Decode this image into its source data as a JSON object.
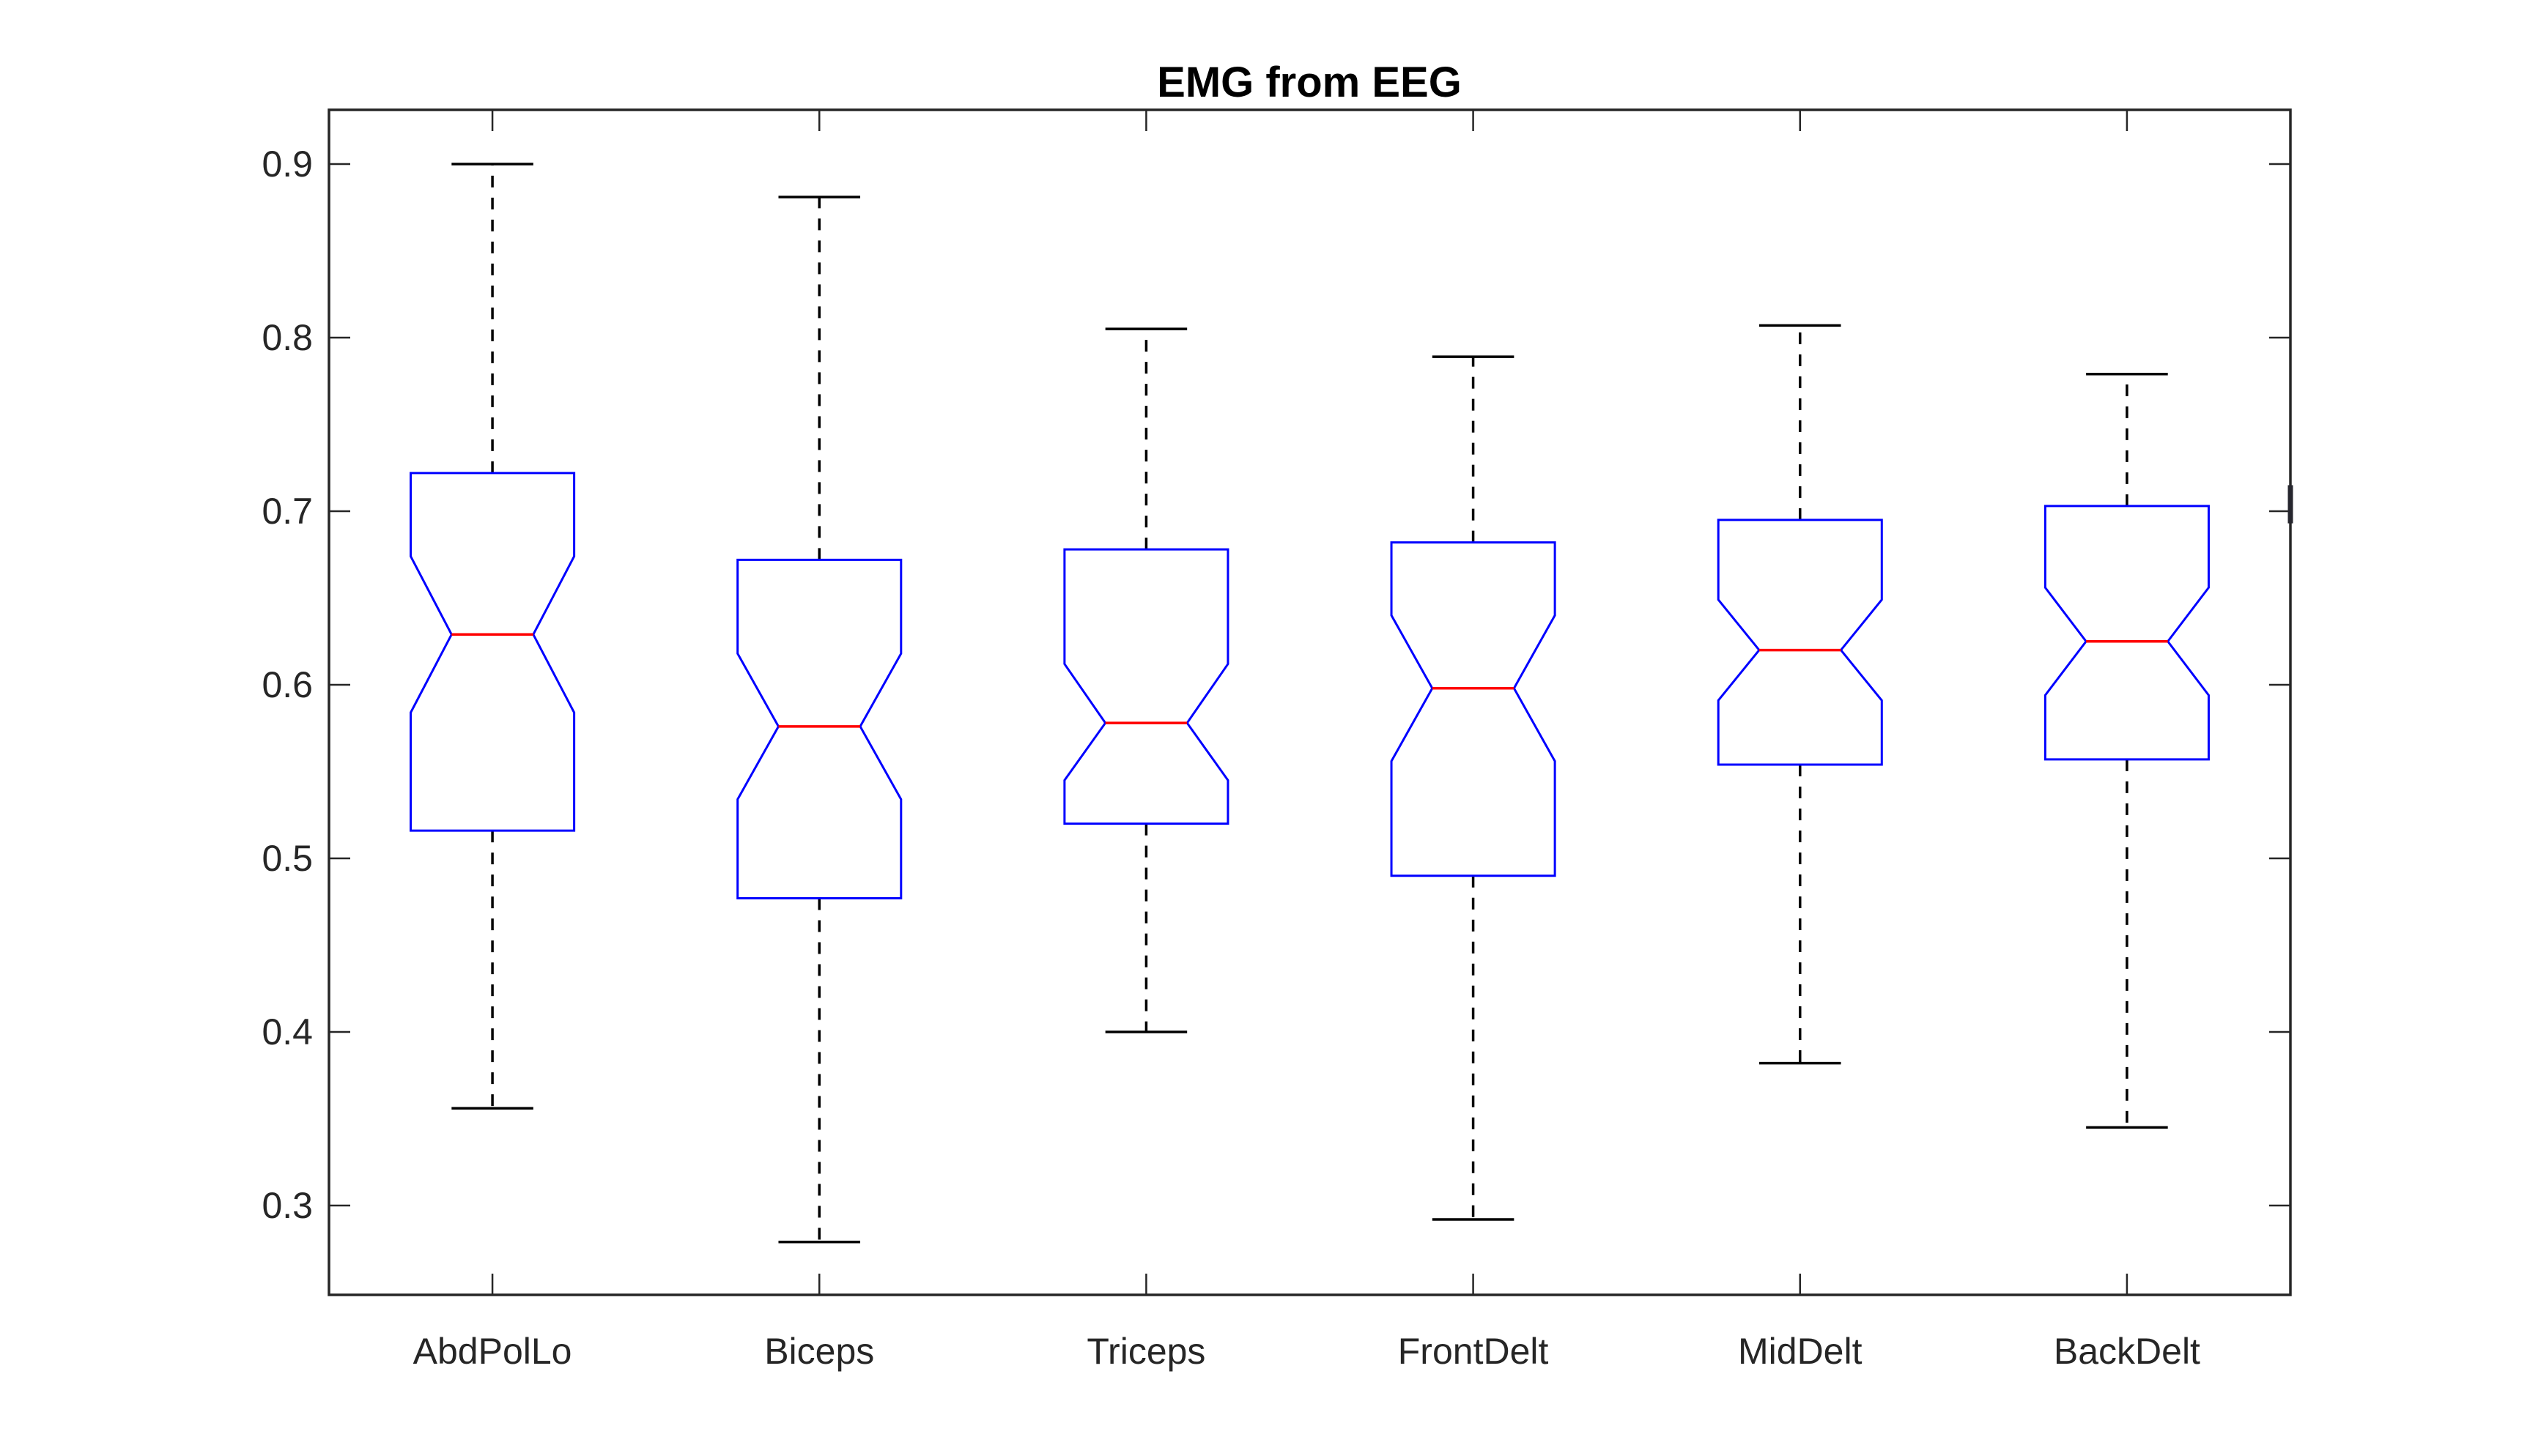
{
  "title": "EMG from EEG",
  "colors": {
    "box": "#0000ff",
    "median": "#ff0000",
    "whisker": "#000000",
    "axis": "#262626",
    "text": "#262626",
    "title": "#000000",
    "background": "#ffffff"
  },
  "chart_data": {
    "type": "boxplot",
    "title": "EMG from EEG",
    "notched": true,
    "xlabel": "",
    "ylabel": "",
    "grid": false,
    "legend": null,
    "ylim": [
      0.2485,
      0.9312
    ],
    "xlim_units": [
      0.5,
      6.5
    ],
    "y_ticks": [
      {
        "value": 0.9,
        "label": "0.9"
      },
      {
        "value": 0.8,
        "label": "0.8"
      },
      {
        "value": 0.7,
        "label": "0.7"
      },
      {
        "value": 0.6,
        "label": "0.6"
      },
      {
        "value": 0.5,
        "label": "0.5"
      },
      {
        "value": 0.4,
        "label": "0.4"
      },
      {
        "value": 0.3,
        "label": "0.3"
      }
    ],
    "categories": [
      "AbdPolLo",
      "Biceps",
      "Triceps",
      "FrontDelt",
      "MidDelt",
      "BackDelt"
    ],
    "series": [
      {
        "name": "AbdPolLo",
        "whisker_low": 0.356,
        "q1": 0.516,
        "notch_low": 0.584,
        "median": 0.629,
        "notch_high": 0.674,
        "q3": 0.722,
        "whisker_high": 0.9
      },
      {
        "name": "Biceps",
        "whisker_low": 0.279,
        "q1": 0.477,
        "notch_low": 0.534,
        "median": 0.576,
        "notch_high": 0.618,
        "q3": 0.672,
        "whisker_high": 0.881
      },
      {
        "name": "Triceps",
        "whisker_low": 0.4,
        "q1": 0.52,
        "notch_low": 0.545,
        "median": 0.578,
        "notch_high": 0.612,
        "q3": 0.678,
        "whisker_high": 0.805
      },
      {
        "name": "FrontDelt",
        "whisker_low": 0.292,
        "q1": 0.49,
        "notch_low": 0.556,
        "median": 0.598,
        "notch_high": 0.64,
        "q3": 0.682,
        "whisker_high": 0.789
      },
      {
        "name": "MidDelt",
        "whisker_low": 0.382,
        "q1": 0.554,
        "notch_low": 0.591,
        "median": 0.62,
        "notch_high": 0.649,
        "q3": 0.695,
        "whisker_high": 0.807
      },
      {
        "name": "BackDelt",
        "whisker_low": 0.345,
        "q1": 0.557,
        "notch_low": 0.594,
        "median": 0.625,
        "notch_high": 0.656,
        "q3": 0.703,
        "whisker_high": 0.779
      }
    ],
    "clipped_edge_artifact": {
      "x_unit": 6.5,
      "value_low": 0.693,
      "value_high": 0.715
    }
  }
}
